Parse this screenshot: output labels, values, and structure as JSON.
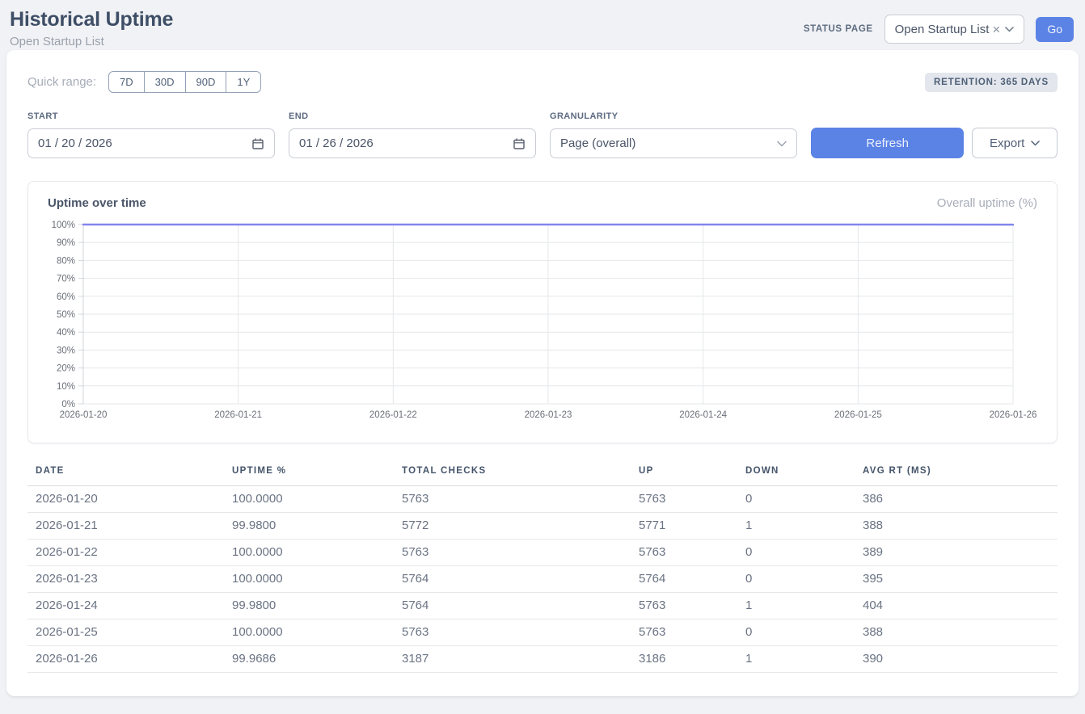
{
  "header": {
    "title": "Historical Uptime",
    "subtitle": "Open Startup List",
    "status_page_label": "STATUS PAGE",
    "status_page_value": "Open Startup List",
    "clear_icon": "×",
    "go_label": "Go"
  },
  "controls": {
    "quick_range_label": "Quick range:",
    "quick_ranges": [
      "7D",
      "30D",
      "90D",
      "1Y"
    ],
    "retention_badge": "RETENTION: 365 DAYS",
    "start_label": "START",
    "start_value": "01 / 20 / 2026",
    "end_label": "END",
    "end_value": "01 / 26 / 2026",
    "granularity_label": "GRANULARITY",
    "granularity_value": "Page (overall)",
    "refresh_label": "Refresh",
    "export_label": "Export"
  },
  "chart_data": {
    "type": "line",
    "title": "Uptime over time",
    "x": [
      "2026-01-20",
      "2026-01-21",
      "2026-01-22",
      "2026-01-23",
      "2026-01-24",
      "2026-01-25",
      "2026-01-26"
    ],
    "series": [
      {
        "name": "Overall uptime (%)",
        "color": "#8285ec",
        "values": [
          100.0,
          99.98,
          100.0,
          100.0,
          99.98,
          100.0,
          99.9686
        ]
      }
    ],
    "ylim": [
      0,
      100
    ],
    "ytick_step": 10,
    "ytick_suffix": "%",
    "grid": true,
    "legend_position": "top-right",
    "xlabel": "",
    "ylabel": ""
  },
  "table": {
    "columns": [
      "DATE",
      "UPTIME %",
      "TOTAL CHECKS",
      "UP",
      "DOWN",
      "AVG RT (MS)"
    ],
    "rows": [
      [
        "2026-01-20",
        "100.0000",
        "5763",
        "5763",
        "0",
        "386"
      ],
      [
        "2026-01-21",
        "99.9800",
        "5772",
        "5771",
        "1",
        "388"
      ],
      [
        "2026-01-22",
        "100.0000",
        "5763",
        "5763",
        "0",
        "389"
      ],
      [
        "2026-01-23",
        "100.0000",
        "5764",
        "5764",
        "0",
        "395"
      ],
      [
        "2026-01-24",
        "99.9800",
        "5764",
        "5763",
        "1",
        "404"
      ],
      [
        "2026-01-25",
        "100.0000",
        "5763",
        "5763",
        "0",
        "388"
      ],
      [
        "2026-01-26",
        "99.9686",
        "3187",
        "3186",
        "1",
        "390"
      ]
    ]
  },
  "colors": {
    "accent": "#5b83e6",
    "line": "#8285ec",
    "grid": "#e6e7e9",
    "axis": "#d2d5da",
    "tick_text": "#6a6f78"
  }
}
